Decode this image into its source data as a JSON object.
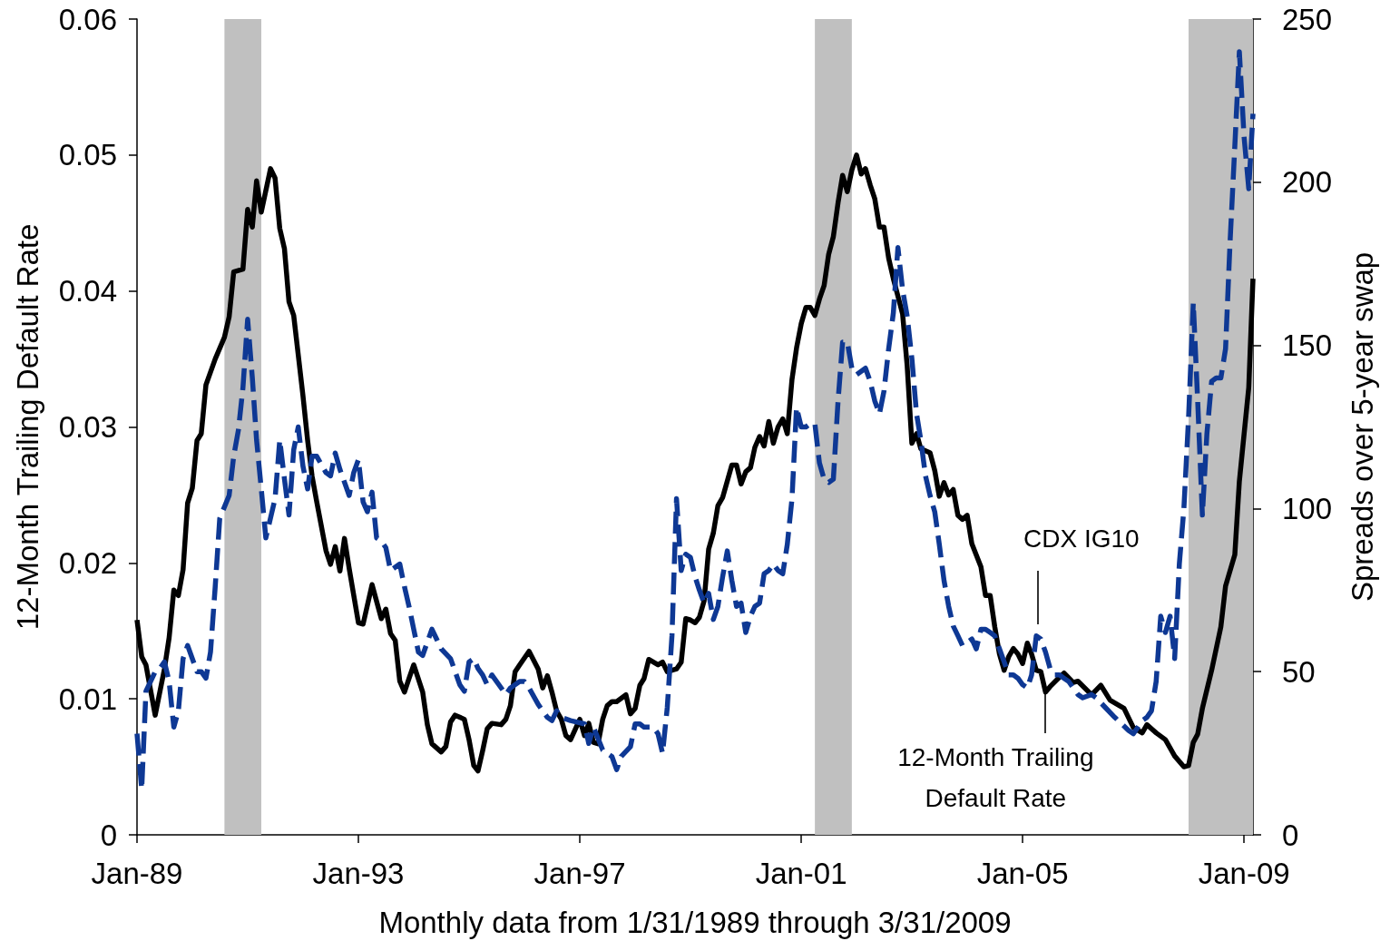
{
  "chart_data": {
    "type": "line",
    "xlabel": "Monthly data from 1/31/1989 through 3/31/2009",
    "ylabel": "12-Month Trailing Default Rate",
    "y2label": "Spreads over 5-year swap",
    "xlim": [
      "1989-01",
      "2009-03"
    ],
    "xticks": [
      {
        "value": "1989-01",
        "label": "Jan-89"
      },
      {
        "value": "1993-01",
        "label": "Jan-93"
      },
      {
        "value": "1997-01",
        "label": "Jan-97"
      },
      {
        "value": "2001-01",
        "label": "Jan-01"
      },
      {
        "value": "2005-01",
        "label": "Jan-05"
      },
      {
        "value": "2009-01",
        "label": "Jan-09"
      }
    ],
    "ylim": [
      0,
      0.06
    ],
    "yticks": [
      0,
      0.01,
      0.02,
      0.03,
      0.04,
      0.05,
      0.06
    ],
    "y2lim": [
      0,
      250
    ],
    "y2ticks": [
      0,
      50,
      100,
      150,
      200,
      250
    ],
    "marker": "none",
    "bands": [
      {
        "axis": "x",
        "from": "1990-08",
        "to": "1991-04",
        "color": "#c0c0c0"
      },
      {
        "axis": "x",
        "from": "2001-04",
        "to": "2001-12",
        "color": "#c0c0c0"
      },
      {
        "axis": "x",
        "from": "2008-01",
        "to": "2009-03",
        "color": "#c0c0c0"
      }
    ],
    "series": [
      {
        "color": "#000000",
        "line_style": "solid",
        "x": [
          "1989-01",
          "1989-02",
          "1989-03",
          "1989-05",
          "1989-07",
          "1989-08",
          "1989-09",
          "1989-10",
          "1989-11",
          "1989-12",
          "1990-01",
          "1990-02",
          "1990-03",
          "1990-04",
          "1990-06",
          "1990-08",
          "1990-09",
          "1990-10",
          "1990-12",
          "1991-01",
          "1991-02",
          "1991-03",
          "1991-04",
          "1991-06",
          "1991-07",
          "1991-08",
          "1991-09",
          "1991-10",
          "1991-11",
          "1992-01",
          "1992-02",
          "1992-03",
          "1992-04",
          "1992-06",
          "1992-07",
          "1992-08",
          "1992-09",
          "1992-10",
          "1992-11",
          "1993-01",
          "1993-02",
          "1993-04",
          "1993-06",
          "1993-07",
          "1993-08",
          "1993-09",
          "1993-10",
          "1993-11",
          "1993-12",
          "1994-01",
          "1994-03",
          "1994-04",
          "1994-05",
          "1994-07",
          "1994-08",
          "1994-09",
          "1994-10",
          "1994-12",
          "1995-01",
          "1995-02",
          "1995-03",
          "1995-04",
          "1995-05",
          "1995-06",
          "1995-08",
          "1995-09",
          "1995-10",
          "1995-11",
          "1995-12",
          "1996-02",
          "1996-04",
          "1996-05",
          "1996-06",
          "1996-07",
          "1996-08",
          "1996-09",
          "1996-10",
          "1996-11",
          "1997-01",
          "1997-02",
          "1997-03",
          "1997-04",
          "1997-05",
          "1997-06",
          "1997-07",
          "1997-08",
          "1997-09",
          "1997-11",
          "1997-12",
          "1998-01",
          "1998-02",
          "1998-03",
          "1998-04",
          "1998-06",
          "1998-07",
          "1998-08",
          "1998-09",
          "1998-10",
          "1998-11",
          "1998-12",
          "1999-01",
          "1999-02",
          "1999-03",
          "1999-04",
          "1999-05",
          "1999-06",
          "1999-07",
          "1999-08",
          "1999-10",
          "1999-11",
          "1999-12",
          "2000-01",
          "2000-02",
          "2000-03",
          "2000-04",
          "2000-05",
          "2000-06",
          "2000-07",
          "2000-08",
          "2000-09",
          "2000-10",
          "2000-11",
          "2000-12",
          "2001-01",
          "2001-02",
          "2001-03",
          "2001-04",
          "2001-05",
          "2001-06",
          "2001-07",
          "2001-08",
          "2001-09",
          "2001-10",
          "2001-11",
          "2001-12",
          "2002-01",
          "2002-02",
          "2002-03",
          "2002-04",
          "2002-05",
          "2002-06",
          "2002-07",
          "2002-08",
          "2002-09",
          "2002-11",
          "2002-12",
          "2003-01",
          "2003-02",
          "2003-03",
          "2003-05",
          "2003-06",
          "2003-07",
          "2003-08",
          "2003-09",
          "2003-10",
          "2003-11",
          "2003-12",
          "2004-01",
          "2004-02",
          "2004-04",
          "2004-05",
          "2004-06",
          "2004-07",
          "2004-08",
          "2004-09",
          "2004-10",
          "2004-11",
          "2004-12",
          "2005-01",
          "2005-02",
          "2005-03",
          "2005-04",
          "2005-05",
          "2005-06",
          "2005-07",
          "2005-09",
          "2005-10",
          "2005-12",
          "2006-01",
          "2006-04",
          "2006-06",
          "2006-08",
          "2006-11",
          "2007-01",
          "2007-03",
          "2007-04",
          "2007-06",
          "2007-08",
          "2007-10",
          "2007-12",
          "2008-01",
          "2008-02",
          "2008-03",
          "2008-04",
          "2008-06",
          "2008-08",
          "2008-09",
          "2008-11",
          "2008-12",
          "2009-02",
          "2009-03"
        ],
        "values": [
          0.0158,
          0.0131,
          0.0125,
          0.0088,
          0.0122,
          0.0145,
          0.018,
          0.0176,
          0.0195,
          0.0244,
          0.0255,
          0.029,
          0.0295,
          0.0331,
          0.035,
          0.0366,
          0.0381,
          0.0414,
          0.0416,
          0.046,
          0.0447,
          0.0481,
          0.0458,
          0.049,
          0.0483,
          0.0446,
          0.0431,
          0.0392,
          0.0382,
          0.0323,
          0.029,
          0.0264,
          0.0245,
          0.0209,
          0.0199,
          0.0212,
          0.0194,
          0.0218,
          0.0196,
          0.0156,
          0.0155,
          0.0184,
          0.0159,
          0.0166,
          0.0148,
          0.0143,
          0.0113,
          0.0105,
          0.0115,
          0.0125,
          0.0105,
          0.0081,
          0.0067,
          0.0061,
          0.0065,
          0.0083,
          0.0088,
          0.0085,
          0.007,
          0.0051,
          0.0047,
          0.0062,
          0.0078,
          0.0082,
          0.0081,
          0.0085,
          0.0095,
          0.012,
          0.0125,
          0.0135,
          0.0122,
          0.0108,
          0.0117,
          0.0105,
          0.0091,
          0.0085,
          0.0073,
          0.007,
          0.0085,
          0.0073,
          0.0082,
          0.0068,
          0.0067,
          0.0085,
          0.0095,
          0.0098,
          0.0098,
          0.0103,
          0.0089,
          0.0093,
          0.011,
          0.0115,
          0.0129,
          0.0125,
          0.0127,
          0.012,
          0.0121,
          0.0122,
          0.0127,
          0.0159,
          0.0158,
          0.0156,
          0.016,
          0.0172,
          0.021,
          0.0222,
          0.0242,
          0.0248,
          0.0272,
          0.0272,
          0.0258,
          0.0267,
          0.027,
          0.0285,
          0.0293,
          0.0286,
          0.0304,
          0.0288,
          0.03,
          0.0306,
          0.0295,
          0.0335,
          0.0358,
          0.0376,
          0.0388,
          0.0388,
          0.0382,
          0.0394,
          0.0404,
          0.0427,
          0.044,
          0.0465,
          0.0485,
          0.0473,
          0.0489,
          0.05,
          0.0486,
          0.049,
          0.0478,
          0.0468,
          0.0447,
          0.0447,
          0.0424,
          0.0409,
          0.0383,
          0.0345,
          0.0288,
          0.0295,
          0.0284,
          0.0281,
          0.0268,
          0.0249,
          0.0259,
          0.025,
          0.0254,
          0.0235,
          0.0232,
          0.0235,
          0.0214,
          0.0197,
          0.0176,
          0.0176,
          0.0153,
          0.0133,
          0.0121,
          0.0131,
          0.0137,
          0.0133,
          0.0126,
          0.0141,
          0.0133,
          0.0121,
          0.012,
          0.0105,
          0.0109,
          0.0116,
          0.0119,
          0.0112,
          0.0113,
          0.0103,
          0.011,
          0.0099,
          0.0093,
          0.0079,
          0.0075,
          0.0081,
          0.0075,
          0.007,
          0.0058,
          0.005,
          0.0051,
          0.0068,
          0.0074,
          0.0093,
          0.0121,
          0.0153,
          0.0183,
          0.0206,
          0.026,
          0.0329,
          0.0409
        ]
      },
      {
        "color": "#0e3894",
        "line_style": "dashed",
        "axis": "y2",
        "x": [
          "1989-01",
          "1989-02",
          "1989-03",
          "1989-05",
          "1989-06",
          "1989-07",
          "1989-08",
          "1989-09",
          "1989-10",
          "1989-11",
          "1989-12",
          "1990-02",
          "1990-03",
          "1990-04",
          "1990-05",
          "1990-06",
          "1990-07",
          "1990-09",
          "1990-10",
          "1990-11",
          "1990-12",
          "1991-01",
          "1991-02",
          "1991-03",
          "1991-04",
          "1991-05",
          "1991-07",
          "1991-08",
          "1991-09",
          "1991-10",
          "1991-11",
          "1991-12",
          "1992-01",
          "1992-02",
          "1992-03",
          "1992-04",
          "1992-06",
          "1992-07",
          "1992-08",
          "1992-09",
          "1992-11",
          "1992-12",
          "1993-01",
          "1993-02",
          "1993-03",
          "1993-04",
          "1993-05",
          "1993-06",
          "1993-07",
          "1993-08",
          "1993-10",
          "1993-11",
          "1993-12",
          "1994-01",
          "1994-02",
          "1994-03",
          "1994-05",
          "1994-06",
          "1994-07",
          "1994-09",
          "1994-11",
          "1994-12",
          "1995-01",
          "1995-02",
          "1995-03",
          "1995-04",
          "1995-05",
          "1995-06",
          "1995-09",
          "1995-10",
          "1995-11",
          "1995-12",
          "1996-01",
          "1996-02",
          "1996-04",
          "1996-05",
          "1996-06",
          "1996-07",
          "1996-08",
          "1996-09",
          "1996-11",
          "1997-02",
          "1997-03",
          "1997-04",
          "1997-06",
          "1997-07",
          "1997-08",
          "1997-09",
          "1997-10",
          "1997-12",
          "1998-01",
          "1998-02",
          "1998-03",
          "1998-05",
          "1998-06",
          "1998-07",
          "1998-08",
          "1998-09",
          "1998-10",
          "1998-11",
          "1998-12",
          "1999-01",
          "1999-02",
          "1999-03",
          "1999-04",
          "1999-05",
          "1999-06",
          "1999-07",
          "1999-08",
          "1999-09",
          "1999-10",
          "1999-11",
          "1999-12",
          "2000-01",
          "2000-02",
          "2000-03",
          "2000-04",
          "2000-05",
          "2000-06",
          "2000-07",
          "2000-08",
          "2000-09",
          "2000-10",
          "2000-11",
          "2000-12",
          "2001-01",
          "2001-02",
          "2001-03",
          "2001-04",
          "2001-05",
          "2001-06",
          "2001-07",
          "2001-08",
          "2001-09",
          "2001-10",
          "2001-11",
          "2001-12",
          "2002-01",
          "2002-03",
          "2002-04",
          "2002-05",
          "2002-06",
          "2002-07",
          "2002-08",
          "2002-09",
          "2002-10",
          "2002-11",
          "2002-12",
          "2003-01",
          "2003-02",
          "2003-03",
          "2003-04",
          "2003-05",
          "2003-06",
          "2003-07",
          "2003-08",
          "2003-09",
          "2003-10",
          "2003-11",
          "2003-12",
          "2004-01",
          "2004-02",
          "2004-03",
          "2004-04",
          "2004-05",
          "2004-06",
          "2004-07",
          "2004-08",
          "2004-09",
          "2004-10",
          "2004-11",
          "2004-12",
          "2005-01",
          "2005-02",
          "2005-03",
          "2005-04",
          "2005-05",
          "2005-06",
          "2005-07",
          "2005-08",
          "2005-09",
          "2005-10",
          "2005-11",
          "2005-12",
          "2006-01",
          "2006-02",
          "2006-04",
          "2006-05",
          "2006-07",
          "2006-09",
          "2006-12",
          "2007-01",
          "2007-02",
          "2007-03",
          "2007-04",
          "2007-05",
          "2007-06",
          "2007-07",
          "2007-08",
          "2007-09",
          "2007-10",
          "2007-11",
          "2007-12",
          "2008-01",
          "2008-02",
          "2008-03",
          "2008-04",
          "2008-05",
          "2008-06",
          "2008-07",
          "2008-08",
          "2008-09",
          "2008-10",
          "2008-11",
          "2008-12",
          "2009-01",
          "2009-02",
          "2009-03"
        ],
        "values": [
          31,
          14,
          44,
          50,
          51,
          53,
          47,
          33,
          38,
          54,
          58,
          50,
          50,
          48,
          56,
          76,
          97,
          104,
          116,
          124,
          137,
          158,
          140,
          121,
          106,
          91,
          103,
          121,
          109,
          98,
          118,
          125,
          113,
          106,
          116,
          116,
          111,
          110,
          117,
          112,
          104,
          111,
          115,
          102,
          99,
          105,
          91,
          90,
          88,
          81,
          83,
          76,
          70,
          63,
          56,
          55,
          63,
          60,
          57,
          54,
          46,
          44,
          53,
          54,
          51,
          49,
          46,
          49,
          43,
          45,
          46,
          47,
          47,
          45,
          40,
          38,
          36,
          35,
          38,
          36,
          35,
          34,
          28,
          33,
          26,
          25,
          24,
          20,
          24,
          27,
          34,
          34,
          33,
          33,
          31,
          25,
          39,
          61,
          103,
          81,
          86,
          85,
          79,
          75,
          71,
          74,
          66,
          70,
          79,
          87,
          78,
          70,
          71,
          62,
          67,
          70,
          71,
          80,
          81,
          83,
          81,
          80,
          89,
          103,
          131,
          125,
          125,
          126,
          126,
          114,
          109,
          108,
          109,
          133,
          151,
          151,
          143,
          141,
          143,
          139,
          133,
          129,
          136,
          149,
          160,
          180,
          167,
          159,
          146,
          129,
          121,
          110,
          104,
          99,
          89,
          78,
          70,
          64,
          61,
          58,
          59,
          60,
          57,
          63,
          63,
          62,
          61,
          57,
          53,
          49,
          49,
          48,
          46,
          45,
          49,
          61,
          60,
          56,
          51,
          49,
          49,
          48,
          47,
          45,
          43,
          42,
          43,
          42,
          39,
          36,
          32,
          31,
          33,
          35,
          36,
          38,
          47,
          67,
          62,
          67,
          54,
          83,
          100,
          128,
          163,
          133,
          98,
          123,
          139,
          140,
          140,
          149,
          182,
          211,
          240,
          214,
          198,
          221
        ]
      }
    ],
    "annotations": [
      "CDX IG10",
      {
        "text": "12-Month Trailing Default Rate",
        "x": "2005-06",
        "y": 0.0105
      }
    ]
  }
}
